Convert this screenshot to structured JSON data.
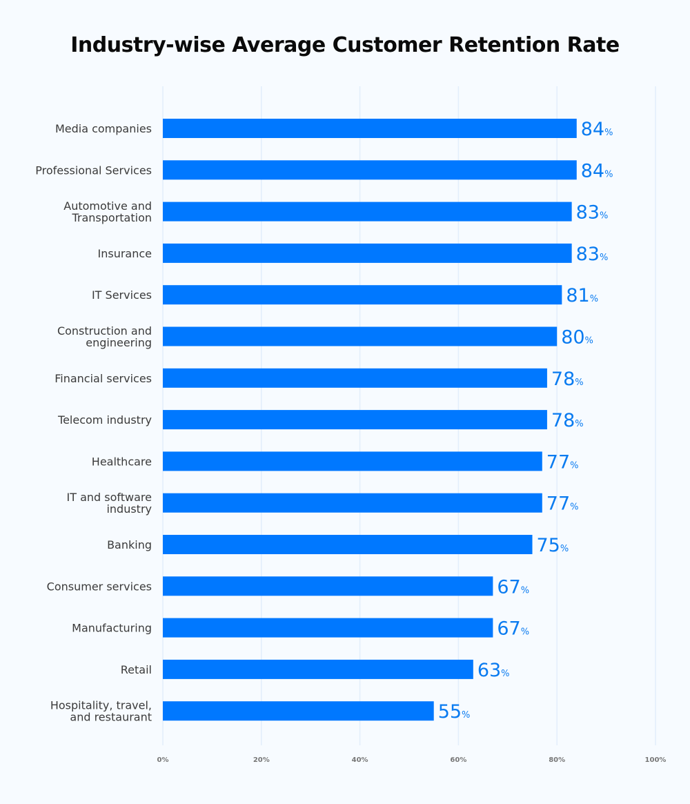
{
  "chart_data": {
    "type": "bar",
    "orientation": "horizontal",
    "title": "Industry-wise Average Customer Retention Rate",
    "categories": [
      [
        "Media companies"
      ],
      [
        "Professional Services"
      ],
      [
        "Automotive and",
        "Transportation"
      ],
      [
        "Insurance"
      ],
      [
        "IT Services"
      ],
      [
        "Construction and",
        "engineering"
      ],
      [
        "Financial services"
      ],
      [
        "Telecom industry"
      ],
      [
        "Healthcare"
      ],
      [
        "IT and software",
        "industry"
      ],
      [
        "Banking"
      ],
      [
        "Consumer services"
      ],
      [
        "Manufacturing"
      ],
      [
        "Retail"
      ],
      [
        "Hospitality, travel,",
        "and restaurant"
      ]
    ],
    "values": [
      84,
      84,
      83,
      83,
      81,
      80,
      78,
      78,
      77,
      77,
      75,
      67,
      67,
      63,
      55
    ],
    "value_suffix": "%",
    "xlim": [
      0,
      100
    ],
    "x_ticks": [
      "0%",
      "20%",
      "40%",
      "60%",
      "80%",
      "100%"
    ],
    "grid": true,
    "bar_color": "#0078ff",
    "label_color": "#0a7bf0"
  }
}
